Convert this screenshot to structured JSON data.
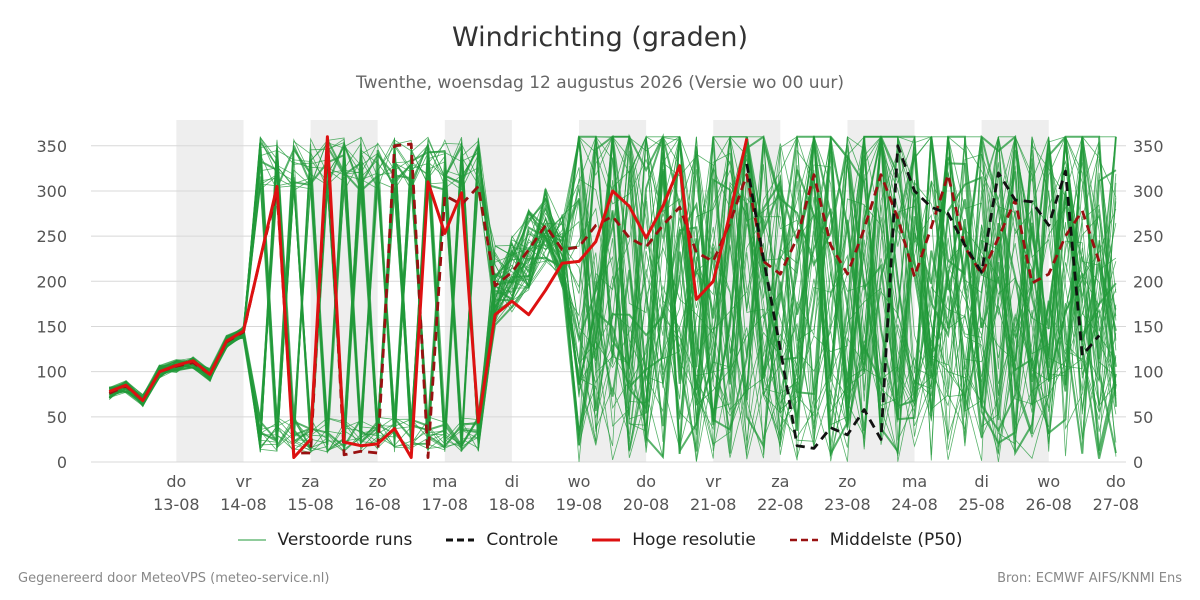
{
  "chart_data": {
    "type": "line",
    "title": "Windrichting (graden)",
    "subtitle": "Twenthe, woensdag 12 augustus 2026 (Versie wo 00 uur)",
    "ylim": [
      0,
      360
    ],
    "y_ticks": [
      0,
      50,
      100,
      150,
      200,
      250,
      300,
      350
    ],
    "x_range_days": [
      0,
      15
    ],
    "x_ticks": [
      {
        "day": 1,
        "weekday": "do",
        "date": "13-08"
      },
      {
        "day": 2,
        "weekday": "vr",
        "date": "14-08"
      },
      {
        "day": 3,
        "weekday": "za",
        "date": "15-08"
      },
      {
        "day": 4,
        "weekday": "zo",
        "date": "16-08"
      },
      {
        "day": 5,
        "weekday": "ma",
        "date": "17-08"
      },
      {
        "day": 6,
        "weekday": "di",
        "date": "18-08"
      },
      {
        "day": 7,
        "weekday": "wo",
        "date": "19-08"
      },
      {
        "day": 8,
        "weekday": "do",
        "date": "20-08"
      },
      {
        "day": 9,
        "weekday": "vr",
        "date": "21-08"
      },
      {
        "day": 10,
        "weekday": "za",
        "date": "22-08"
      },
      {
        "day": 11,
        "weekday": "zo",
        "date": "23-08"
      },
      {
        "day": 12,
        "weekday": "ma",
        "date": "24-08"
      },
      {
        "day": 13,
        "weekday": "di",
        "date": "25-08"
      },
      {
        "day": 14,
        "weekday": "wo",
        "date": "26-08"
      },
      {
        "day": 15,
        "weekday": "do",
        "date": "27-08"
      }
    ],
    "shaded_days": [
      [
        1,
        2
      ],
      [
        3,
        4
      ],
      [
        5,
        6
      ],
      [
        7,
        8
      ],
      [
        9,
        10
      ],
      [
        11,
        12
      ],
      [
        13,
        14
      ]
    ],
    "grid": true,
    "legend_position": "bottom",
    "series": [
      {
        "name": "Hoge resolutie",
        "color": "#dd1111",
        "style": "solid",
        "points": [
          [
            0,
            78
          ],
          [
            0.25,
            85
          ],
          [
            0.5,
            68
          ],
          [
            0.75,
            100
          ],
          [
            1,
            107
          ],
          [
            1.25,
            112
          ],
          [
            1.5,
            97
          ],
          [
            1.75,
            134
          ],
          [
            2,
            145
          ],
          [
            2.25,
            225
          ],
          [
            2.5,
            305
          ],
          [
            2.75,
            5
          ],
          [
            3,
            25
          ],
          [
            3.25,
            362
          ],
          [
            3.5,
            22
          ],
          [
            3.75,
            18
          ],
          [
            4,
            20
          ],
          [
            4.25,
            37
          ],
          [
            4.5,
            5
          ],
          [
            4.75,
            310
          ],
          [
            5,
            253
          ],
          [
            5.25,
            298
          ],
          [
            5.5,
            44
          ],
          [
            5.75,
            163
          ],
          [
            6,
            178
          ],
          [
            6.25,
            163
          ],
          [
            6.5,
            190
          ],
          [
            6.75,
            220
          ],
          [
            7,
            222
          ],
          [
            7.25,
            244
          ],
          [
            7.5,
            300
          ],
          [
            7.75,
            283
          ],
          [
            8,
            248
          ],
          [
            8.25,
            283
          ],
          [
            8.5,
            328
          ],
          [
            8.75,
            180
          ],
          [
            9,
            200
          ],
          [
            9.25,
            275
          ],
          [
            9.5,
            358
          ]
        ]
      },
      {
        "name": "Middelste (P50)",
        "color": "#991111",
        "style": "dashed",
        "points": [
          [
            0,
            76
          ],
          [
            0.25,
            84
          ],
          [
            0.5,
            68
          ],
          [
            0.75,
            100
          ],
          [
            1,
            106
          ],
          [
            1.25,
            110
          ],
          [
            1.5,
            97
          ],
          [
            1.75,
            133
          ],
          [
            2,
            144
          ],
          [
            2.25,
            225
          ],
          [
            2.5,
            300
          ],
          [
            2.75,
            10
          ],
          [
            3,
            10
          ],
          [
            3.25,
            355
          ],
          [
            3.5,
            8
          ],
          [
            3.75,
            12
          ],
          [
            4,
            10
          ],
          [
            4.25,
            350
          ],
          [
            4.5,
            352
          ],
          [
            4.75,
            5
          ],
          [
            5,
            295
          ],
          [
            5.25,
            285
          ],
          [
            5.5,
            305
          ],
          [
            5.75,
            195
          ],
          [
            6,
            210
          ],
          [
            6.25,
            235
          ],
          [
            6.5,
            262
          ],
          [
            6.75,
            235
          ],
          [
            7,
            238
          ],
          [
            7.25,
            262
          ],
          [
            7.5,
            272
          ],
          [
            7.75,
            248
          ],
          [
            8,
            238
          ],
          [
            8.25,
            262
          ],
          [
            8.5,
            282
          ],
          [
            8.75,
            232
          ],
          [
            9,
            222
          ],
          [
            9.25,
            265
          ],
          [
            9.5,
            318
          ],
          [
            9.75,
            222
          ],
          [
            10,
            208
          ],
          [
            10.25,
            248
          ],
          [
            10.5,
            318
          ],
          [
            10.75,
            240
          ],
          [
            11,
            208
          ],
          [
            11.25,
            258
          ],
          [
            11.5,
            318
          ],
          [
            11.75,
            270
          ],
          [
            12,
            205
          ],
          [
            12.25,
            260
          ],
          [
            12.5,
            318
          ],
          [
            12.75,
            238
          ],
          [
            13,
            208
          ],
          [
            13.25,
            248
          ],
          [
            13.5,
            290
          ],
          [
            13.75,
            198
          ],
          [
            14,
            208
          ],
          [
            14.25,
            250
          ],
          [
            14.5,
            278
          ],
          [
            14.75,
            222
          ]
        ]
      },
      {
        "name": "Controle",
        "color": "#111111",
        "style": "dashed",
        "points": [
          [
            9.5,
            330
          ],
          [
            9.75,
            225
          ],
          [
            10,
            125
          ],
          [
            10.25,
            18
          ],
          [
            10.5,
            15
          ],
          [
            10.75,
            38
          ],
          [
            11,
            30
          ],
          [
            11.25,
            58
          ],
          [
            11.5,
            25
          ],
          [
            11.75,
            350
          ],
          [
            12,
            300
          ],
          [
            12.25,
            282
          ],
          [
            12.5,
            275
          ],
          [
            12.75,
            240
          ],
          [
            13,
            210
          ],
          [
            13.25,
            320
          ],
          [
            13.5,
            290
          ],
          [
            13.75,
            288
          ],
          [
            14,
            262
          ],
          [
            14.25,
            322
          ],
          [
            14.5,
            118
          ],
          [
            14.75,
            140
          ]
        ]
      }
    ],
    "ensemble": {
      "name": "Verstoorde runs",
      "color": "#22993a",
      "count": 50,
      "note_range": [
        0,
        360
      ]
    }
  },
  "legend": {
    "perturbed": "Verstoorde runs",
    "control": "Controle",
    "hires": "Hoge resolutie",
    "median": "Middelste (P50)"
  },
  "footer": {
    "left": "Gegenereerd door MeteoVPS (meteo-service.nl)",
    "right": "Bron: ECMWF AIFS/KNMI Ens"
  }
}
